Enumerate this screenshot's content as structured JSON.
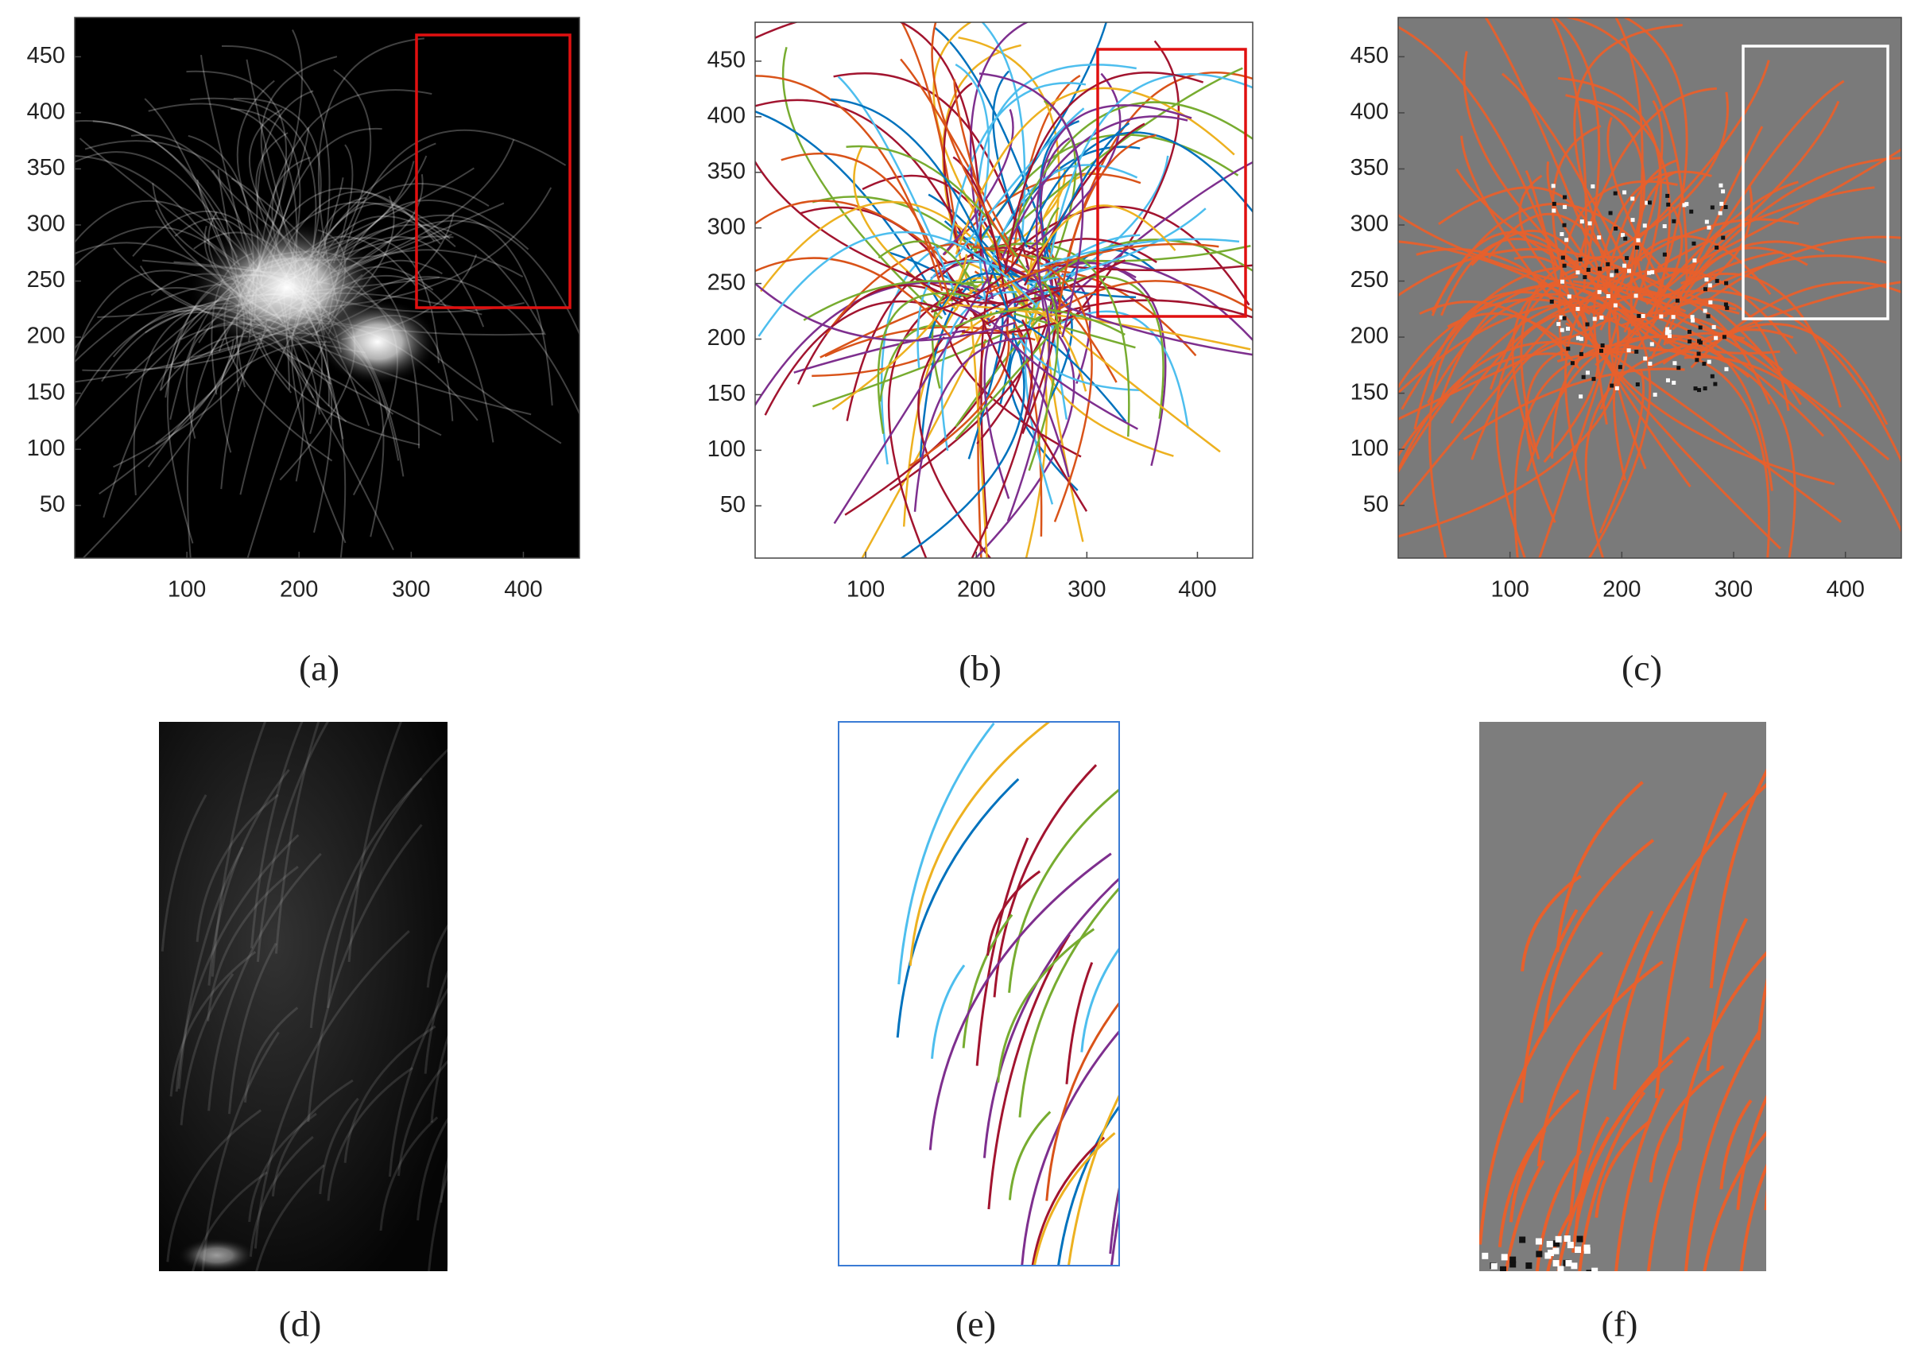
{
  "panels": [
    {
      "caption": "(a)",
      "xlim": [
        0,
        450
      ],
      "ylim": [
        3,
        485
      ],
      "xticks": [
        100,
        200,
        300,
        400
      ],
      "yticks": [
        50,
        100,
        150,
        200,
        250,
        300,
        350,
        400,
        450
      ]
    },
    {
      "caption": "(b)",
      "xlim": [
        0,
        450
      ],
      "ylim": [
        3,
        485
      ],
      "xticks": [
        100,
        200,
        300,
        400
      ],
      "yticks": [
        50,
        100,
        150,
        200,
        250,
        300,
        350,
        400,
        450
      ]
    },
    {
      "caption": "(c)",
      "xlim": [
        0,
        450
      ],
      "ylim": [
        3,
        485
      ],
      "xticks": [
        100,
        200,
        300,
        400
      ],
      "yticks": [
        50,
        100,
        150,
        200,
        250,
        300,
        350,
        400,
        450
      ]
    }
  ],
  "insets": [
    {
      "caption": "(d)"
    },
    {
      "caption": "(e)"
    },
    {
      "caption": "(f)"
    }
  ]
}
